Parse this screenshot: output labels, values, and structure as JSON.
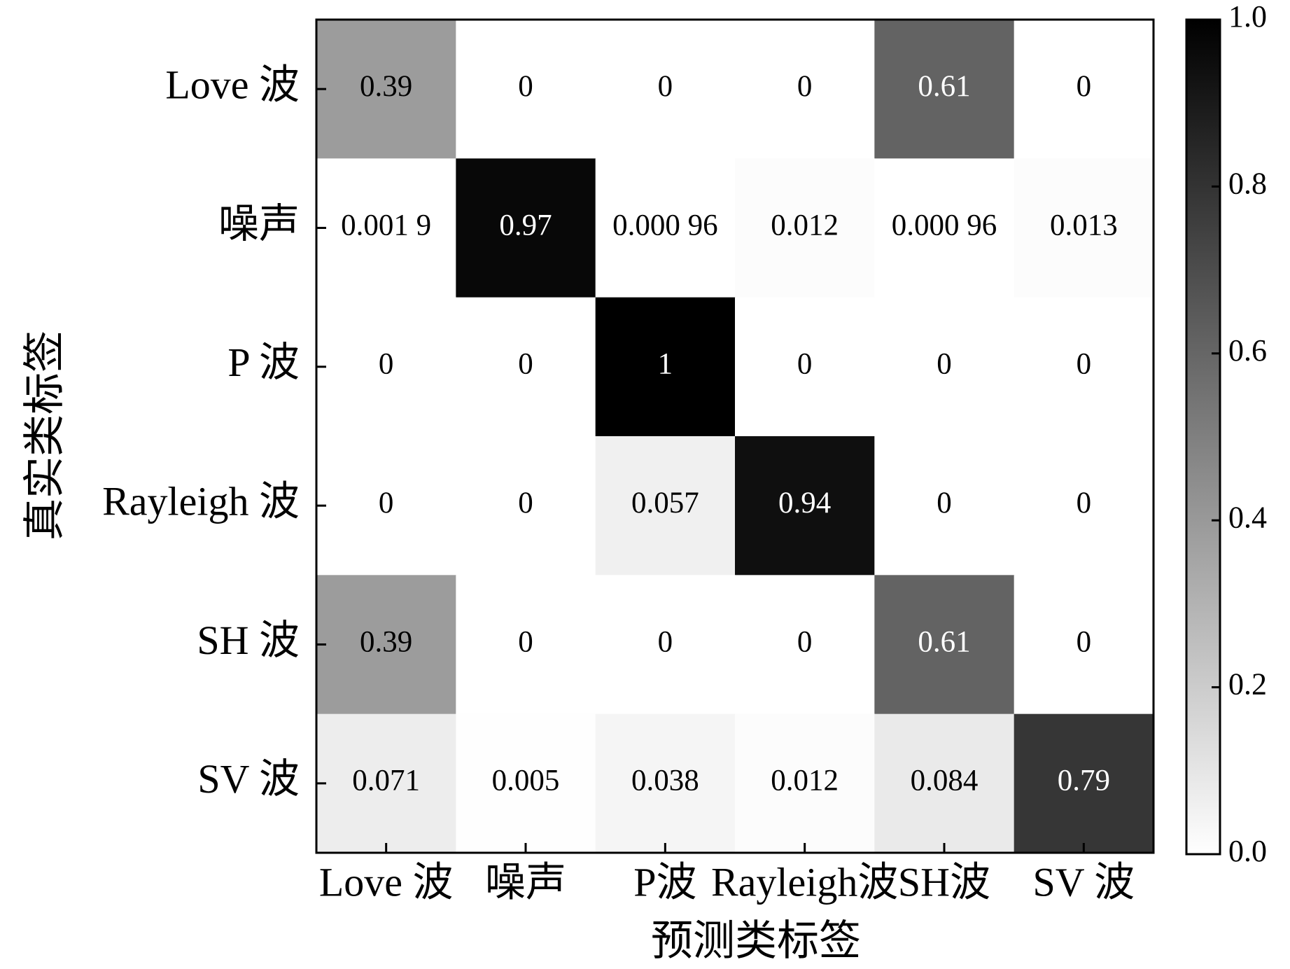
{
  "chart_data": {
    "type": "heatmap",
    "title": "",
    "xlabel": "预测类标签",
    "ylabel": "真实类标签",
    "x_categories": [
      "Love 波",
      "噪声",
      "P波",
      "Rayleigh波",
      "SH波",
      "SV 波"
    ],
    "y_categories": [
      "Love 波",
      "噪声",
      "P 波",
      "Rayleigh 波",
      "SH 波",
      "SV 波"
    ],
    "values": [
      [
        0.39,
        0,
        0,
        0,
        0.61,
        0
      ],
      [
        0.0019,
        0.97,
        0.00096,
        0.012,
        0.00096,
        0.013
      ],
      [
        0,
        0,
        1,
        0,
        0,
        0
      ],
      [
        0,
        0,
        0.057,
        0.94,
        0,
        0
      ],
      [
        0.39,
        0,
        0,
        0,
        0.61,
        0
      ],
      [
        0.071,
        0.005,
        0.038,
        0.012,
        0.084,
        0.79
      ]
    ],
    "cell_labels": [
      [
        "0.39",
        "0",
        "0",
        "0",
        "0.61",
        "0"
      ],
      [
        "0.001 9",
        "0.97",
        "0.000 96",
        "0.012",
        "0.000 96",
        "0.013"
      ],
      [
        "0",
        "0",
        "1",
        "0",
        "0",
        "0"
      ],
      [
        "0",
        "0",
        "0.057",
        "0.94",
        "0",
        "0"
      ],
      [
        "0.39",
        "0",
        "0",
        "0",
        "0.61",
        "0"
      ],
      [
        "0.071",
        "0.005",
        "0.038",
        "0.012",
        "0.084",
        "0.79"
      ]
    ],
    "colorbar": {
      "range": [
        0.0,
        1.0
      ],
      "ticks": [
        "0.0",
        "0.2",
        "0.4",
        "0.6",
        "0.8",
        "1.0"
      ],
      "colormap": "white-to-black"
    },
    "colors": {
      "low": "#ffffff",
      "high": "#000000"
    }
  }
}
